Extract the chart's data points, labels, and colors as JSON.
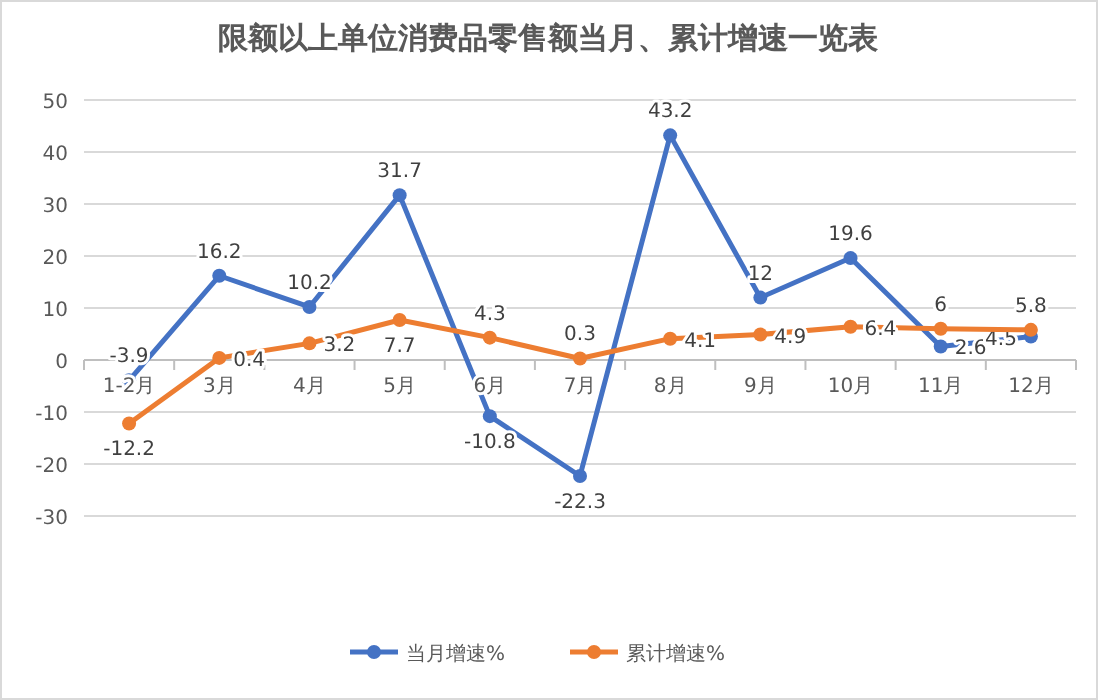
{
  "chart_data": {
    "type": "line",
    "title": "限额以上单位消费品零售额当月、累计增速一览表",
    "categories": [
      "1-2月",
      "3月",
      "4月",
      "5月",
      "6月",
      "7月",
      "8月",
      "9月",
      "10月",
      "11月",
      "12月"
    ],
    "series": [
      {
        "name": "当月增速%",
        "color": "#4472c4",
        "values": [
          -3.9,
          16.2,
          10.2,
          31.7,
          -10.8,
          -22.3,
          43.2,
          12,
          19.6,
          2.6,
          4.5
        ]
      },
      {
        "name": "累计增速%",
        "color": "#ed7d31",
        "values": [
          -12.2,
          0.4,
          3.2,
          7.7,
          4.3,
          0.3,
          4.1,
          4.9,
          6.4,
          6,
          5.8
        ]
      }
    ],
    "ylim": [
      -30,
      50
    ],
    "yticks": [
      -30,
      -20,
      -10,
      0,
      10,
      20,
      30,
      40,
      50
    ],
    "grid": "y",
    "legend": "bottom",
    "marker": "circle",
    "data_labels": true
  }
}
